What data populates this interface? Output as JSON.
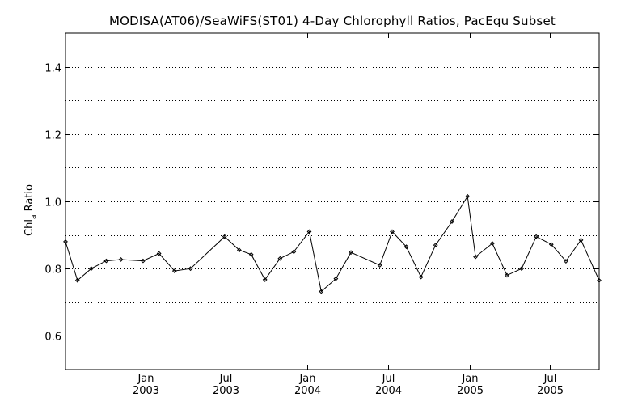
{
  "chart_data": {
    "type": "line",
    "title": "MODISA(AT06)/SeaWiFS(ST01) 4-Day Chlorophyll Ratios, PacEqu Subset",
    "ylabel": {
      "main": "Chl",
      "subscript": "a",
      "rest": " Ratio"
    },
    "xlabel": "",
    "ylim": [
      0.5,
      1.5
    ],
    "yticks": [
      0.6,
      0.8,
      1.0,
      1.2,
      1.4
    ],
    "ytick_labels": [
      "0.6",
      "0.8",
      "1.0",
      "1.2",
      "1.4"
    ],
    "ygrid": [
      0.6,
      0.7,
      0.8,
      0.9,
      1.0,
      1.1,
      1.2,
      1.3,
      1.4
    ],
    "xlim": [
      "2002-07-04",
      "2005-10-20"
    ],
    "xticks": [
      {
        "date": "2003-01-01",
        "month": "Jan",
        "year": "2003"
      },
      {
        "date": "2003-07-01",
        "month": "Jul",
        "year": "2003"
      },
      {
        "date": "2004-01-01",
        "month": "Jan",
        "year": "2004"
      },
      {
        "date": "2004-07-01",
        "month": "Jul",
        "year": "2004"
      },
      {
        "date": "2005-01-01",
        "month": "Jan",
        "year": "2005"
      },
      {
        "date": "2005-07-01",
        "month": "Jul",
        "year": "2005"
      }
    ],
    "grid": "horizontal dotted",
    "marker": "diamond",
    "line_color": "#000000",
    "series": [
      {
        "x": [
          "2002-07-04",
          "2002-07-31",
          "2002-08-31",
          "2002-10-04",
          "2002-11-06",
          "2002-12-26",
          "2003-01-31",
          "2003-03-07",
          "2003-04-12",
          "2003-06-28",
          "2003-07-31",
          "2003-08-27",
          "2003-09-27",
          "2003-10-31",
          "2003-12-01",
          "2004-01-05",
          "2004-02-01",
          "2004-03-05",
          "2004-04-08",
          "2004-06-12",
          "2004-07-10",
          "2004-08-11",
          "2004-09-13",
          "2004-10-16",
          "2004-11-22",
          "2004-12-27",
          "2005-01-14",
          "2005-02-21",
          "2005-03-26",
          "2005-04-28",
          "2005-05-31",
          "2005-07-04",
          "2005-08-06",
          "2005-09-09",
          "2005-10-20"
        ],
        "values": [
          0.88,
          0.765,
          0.8,
          0.823,
          0.827,
          0.823,
          0.845,
          0.793,
          0.8,
          0.895,
          0.855,
          0.842,
          0.767,
          0.83,
          0.85,
          0.91,
          0.732,
          0.77,
          0.848,
          0.81,
          0.91,
          0.865,
          0.775,
          0.87,
          0.94,
          1.015,
          0.835,
          0.875,
          0.78,
          0.8,
          0.895,
          0.872,
          0.822,
          0.885,
          0.765
        ]
      }
    ]
  }
}
